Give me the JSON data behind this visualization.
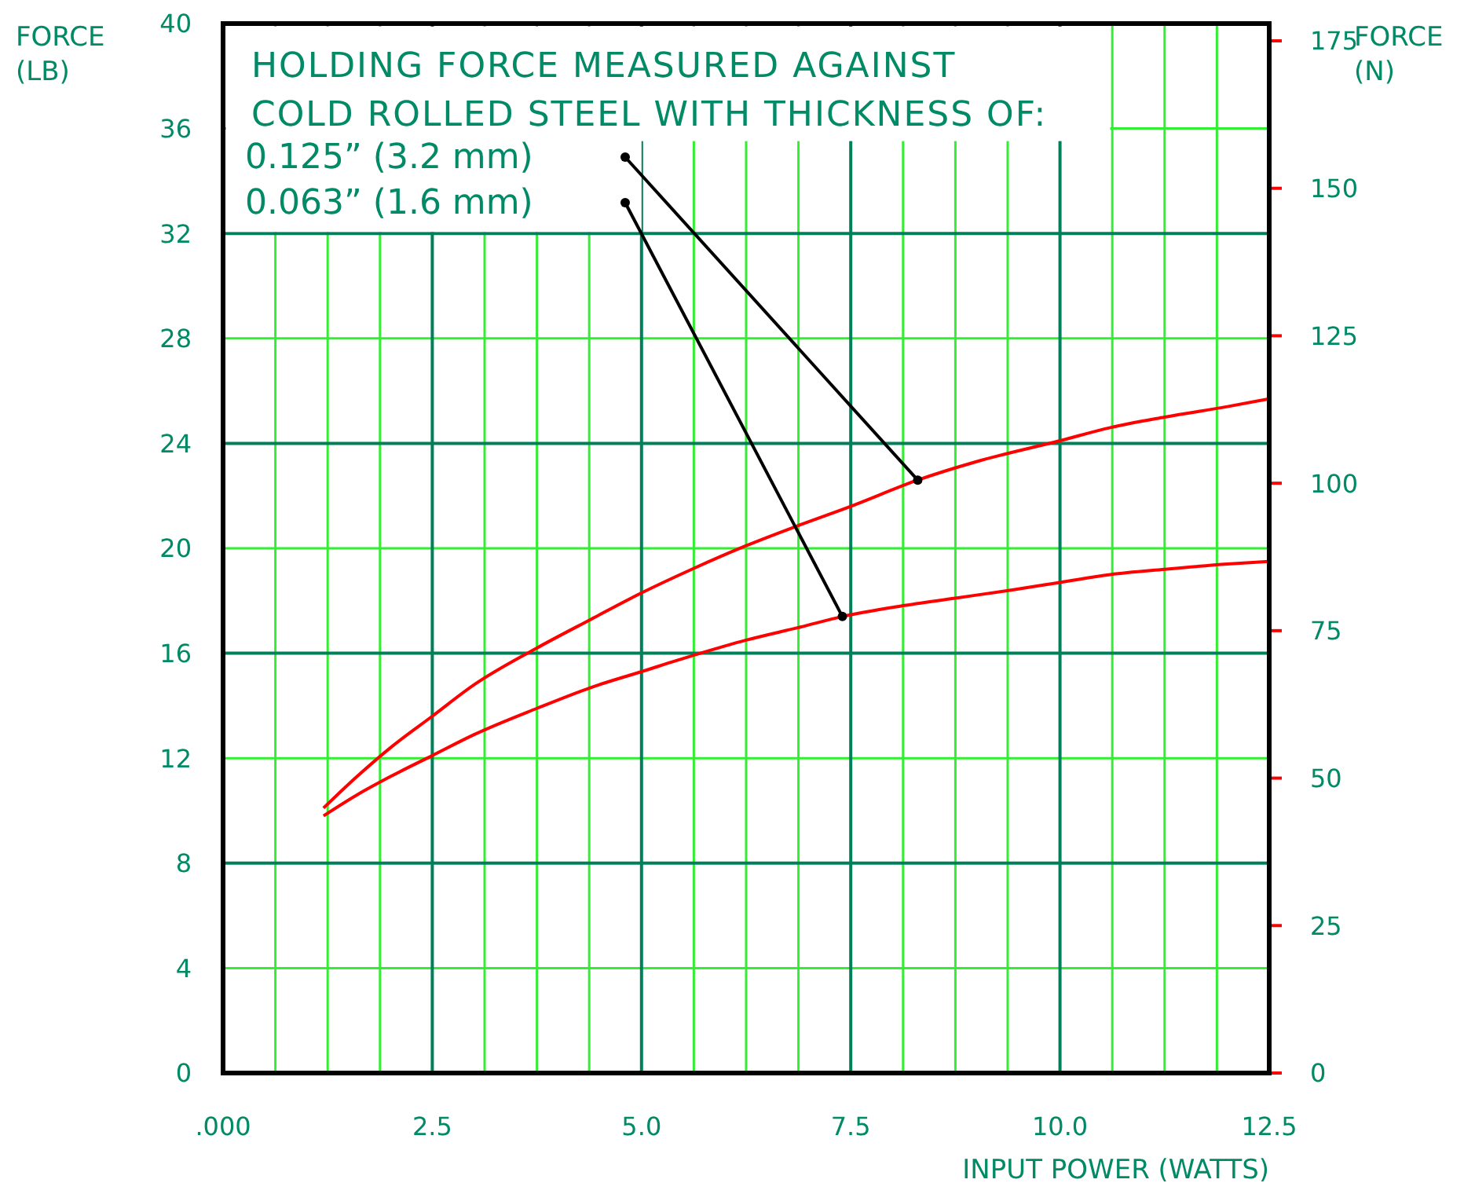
{
  "chart_data": {
    "type": "line",
    "title": "HOLDING FORCE MEASURED AGAINST COLD ROLLED STEEL WITH THICKNESS OF:",
    "xlabel": "INPUT POWER (WATTS)",
    "ylabel": "FORCE (LB)",
    "y2label": "FORCE (N)",
    "series": [
      {
        "color": "#ff0000",
        "x": [
          1.2,
          1.6,
          2.0,
          2.5,
          3.0,
          3.75,
          4.4,
          5.0,
          5.6,
          6.25,
          6.9,
          7.5,
          8.3,
          9.0,
          10.0,
          10.6,
          11.25,
          12.0,
          12.5
        ],
        "values": [
          10.1,
          11.3,
          12.4,
          13.6,
          14.8,
          16.2,
          17.3,
          18.3,
          19.2,
          20.1,
          20.9,
          21.6,
          22.6,
          23.3,
          24.1,
          24.6,
          25.0,
          25.4,
          25.7
        ]
      },
      {
        "color": "#ff0000",
        "x": [
          1.2,
          1.6,
          2.0,
          2.5,
          3.0,
          3.75,
          4.4,
          5.0,
          5.6,
          6.25,
          6.9,
          7.4,
          8.1,
          8.75,
          9.4,
          10.0,
          10.6,
          11.25,
          12.0,
          12.5
        ],
        "values": [
          9.8,
          10.6,
          11.3,
          12.1,
          12.9,
          13.9,
          14.7,
          15.3,
          15.9,
          16.5,
          17.0,
          17.4,
          17.8,
          18.1,
          18.4,
          18.7,
          19.0,
          19.2,
          19.4,
          19.5
        ]
      }
    ],
    "annotations": [
      "0.125” (3.2 mm)",
      "0.063” (1.6 mm)"
    ],
    "xlim": [
      0,
      12.5
    ],
    "xticks": [
      {
        "value": 0,
        "label": ".000"
      },
      2.5,
      {
        "value": 5,
        "label": "5.0"
      },
      7.5,
      {
        "value": 10,
        "label": "10.0"
      },
      12.5
    ],
    "ylim": [
      0,
      40
    ],
    "yticks": [
      0,
      4,
      8,
      12,
      16,
      20,
      24,
      28,
      32,
      36,
      40
    ],
    "y2lim": [
      0,
      177.93
    ],
    "y2ticks": [
      0,
      25,
      50,
      75,
      100,
      125,
      150,
      175
    ],
    "grid": true,
    "marker": "none",
    "line_style": "solid"
  }
}
